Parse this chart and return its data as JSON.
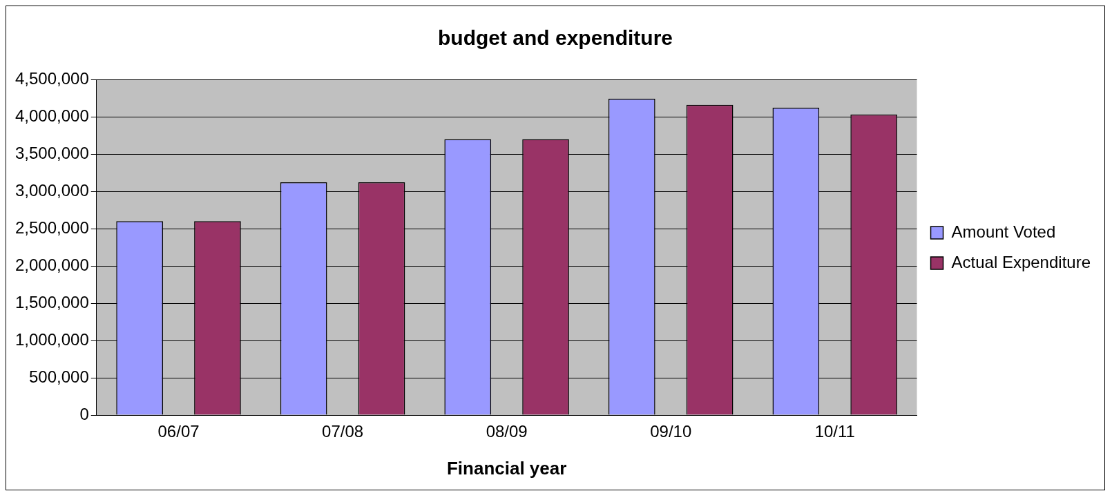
{
  "chart_data": {
    "type": "bar",
    "title": "budget and expenditure",
    "xlabel": "Financial year",
    "categories": [
      "06/07",
      "07/08",
      "08/09",
      "09/10",
      "10/11"
    ],
    "series": [
      {
        "name": "Amount Voted",
        "color": "#9999ff",
        "values": [
          2600000,
          3120000,
          3700000,
          4240000,
          4120000
        ]
      },
      {
        "name": "Actual Expenditure",
        "color": "#993366",
        "values": [
          2600000,
          3120000,
          3700000,
          4160000,
          4030000
        ]
      }
    ],
    "ylim": [
      0,
      4500000
    ],
    "yticks": [
      0,
      {
        "value": 500000,
        "label": "500,000"
      },
      {
        "value": 1000000,
        "label": "1,000,000"
      },
      {
        "value": 1500000,
        "label": "1,500,000"
      },
      {
        "value": 2000000,
        "label": "2,000,000"
      },
      {
        "value": 2500000,
        "label": "2,500,000"
      },
      {
        "value": 3000000,
        "label": "3,000,000"
      },
      {
        "value": 3500000,
        "label": "3,500,000"
      },
      {
        "value": 4000000,
        "label": "4,000,000"
      },
      {
        "value": 4500000,
        "label": "4,500,000"
      }
    ],
    "grid": "y",
    "legend": "right"
  }
}
